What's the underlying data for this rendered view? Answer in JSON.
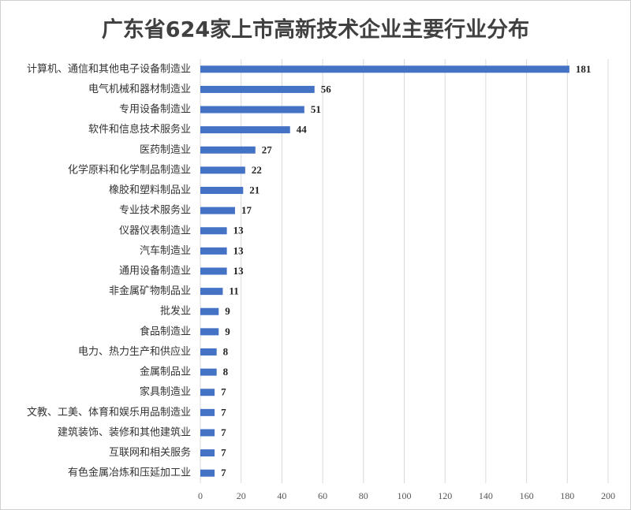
{
  "chart_data": {
    "type": "bar",
    "orientation": "horizontal",
    "title": "广东省624家上市高新技术企业主要行业分布",
    "categories": [
      "计算机、通信和其他电子设备制造业",
      "电气机械和器材制造业",
      "专用设备制造业",
      "软件和信息技术服务业",
      "医药制造业",
      "化学原料和化学制品制造业",
      "橡胶和塑料制品业",
      "专业技术服务业",
      "仪器仪表制造业",
      "汽车制造业",
      "通用设备制造业",
      "非金属矿物制品业",
      "批发业",
      "食品制造业",
      "电力、热力生产和供应业",
      "金属制品业",
      "家具制造业",
      "文教、工美、体育和娱乐用品制造业",
      "建筑装饰、装修和其他建筑业",
      "互联网和相关服务",
      "有色金属冶炼和压延加工业"
    ],
    "values": [
      181,
      56,
      51,
      44,
      27,
      22,
      21,
      17,
      13,
      13,
      13,
      11,
      9,
      9,
      8,
      8,
      7,
      7,
      7,
      7,
      7
    ],
    "color": "#4472c4",
    "xlim": [
      0,
      200
    ],
    "xticks": [
      0,
      20,
      40,
      60,
      80,
      100,
      120,
      140,
      160,
      180,
      200
    ],
    "grid": true
  }
}
